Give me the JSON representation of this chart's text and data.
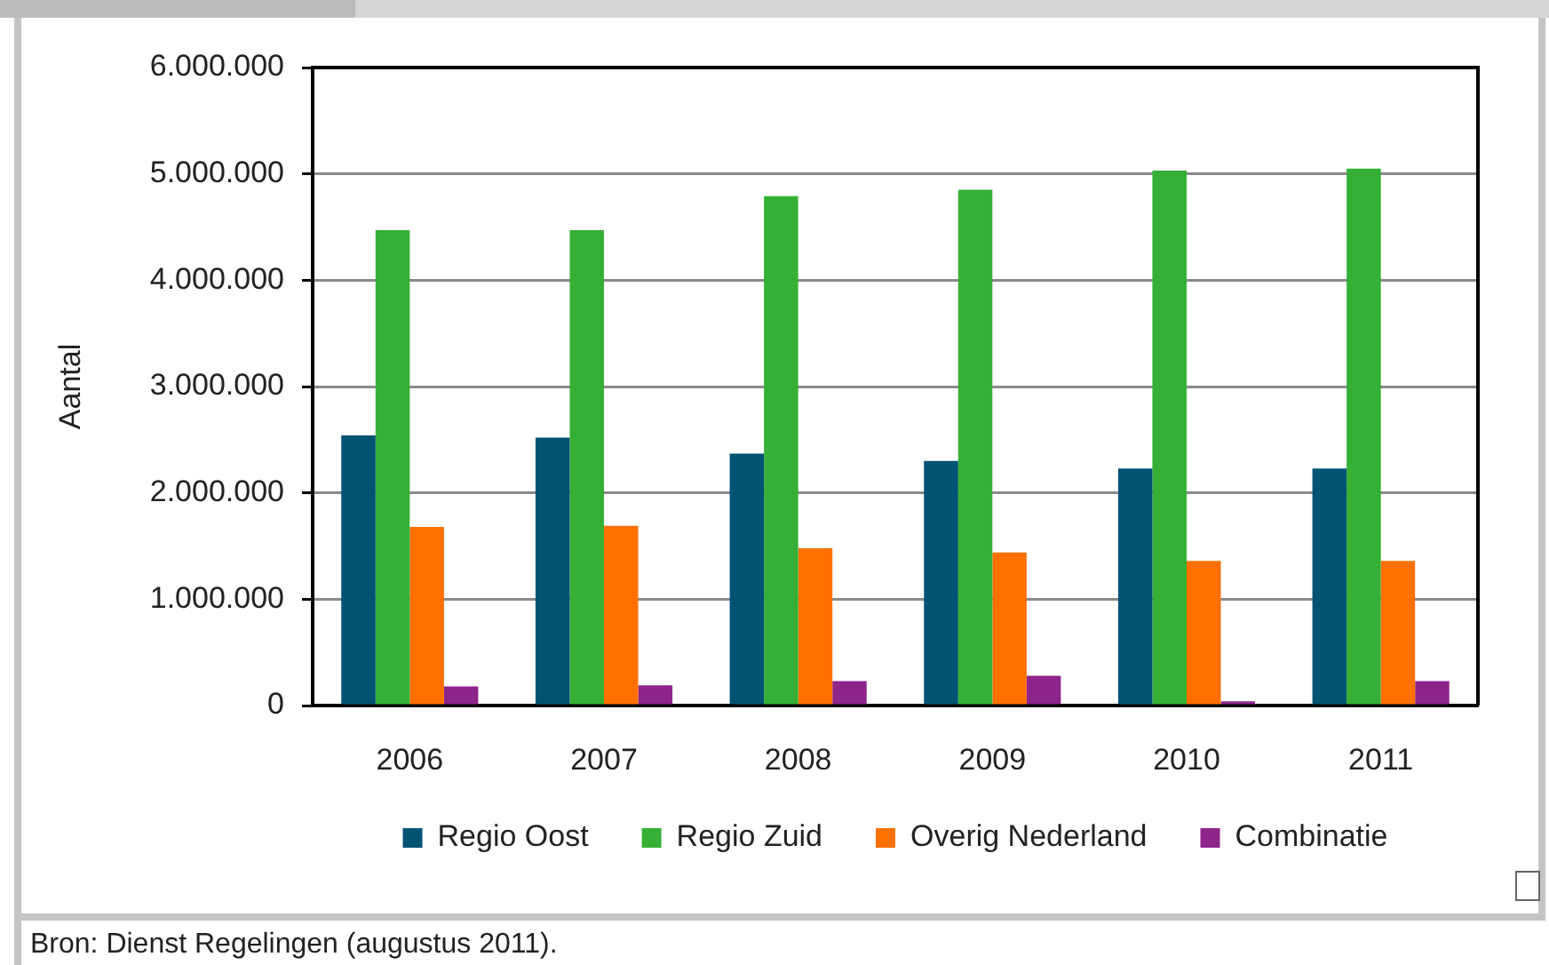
{
  "chart_data": {
    "type": "bar",
    "ylabel": "Aantal",
    "categories": [
      "2006",
      "2007",
      "2008",
      "2009",
      "2010",
      "2011"
    ],
    "series": [
      {
        "name": "Regio Oost",
        "color": "#005373",
        "values": [
          2540000,
          2520000,
          2370000,
          2300000,
          2230000,
          2230000
        ]
      },
      {
        "name": "Regio Zuid",
        "color": "#35b035",
        "values": [
          4470000,
          4470000,
          4790000,
          4850000,
          5030000,
          5050000
        ]
      },
      {
        "name": "Overig Nederland",
        "color": "#ff7000",
        "values": [
          1680000,
          1690000,
          1480000,
          1440000,
          1360000,
          1360000
        ]
      },
      {
        "name": "Combinatie",
        "color": "#8e258b",
        "values": [
          180000,
          190000,
          230000,
          280000,
          40000,
          230000
        ]
      }
    ],
    "ylim": [
      0,
      6000000
    ],
    "yticks": [
      {
        "value": 0,
        "label": "0"
      },
      {
        "value": 1000000,
        "label": "1.000.000"
      },
      {
        "value": 2000000,
        "label": "2.000.000"
      },
      {
        "value": 3000000,
        "label": "3.000.000"
      },
      {
        "value": 4000000,
        "label": "4.000.000"
      },
      {
        "value": 5000000,
        "label": "5.000.000"
      },
      {
        "value": 6000000,
        "label": "6.000.000"
      }
    ],
    "grid": "y",
    "legend": "bottom",
    "annotations": [
      "Bron: Dienst Regelingen (augustus 2011)."
    ]
  }
}
